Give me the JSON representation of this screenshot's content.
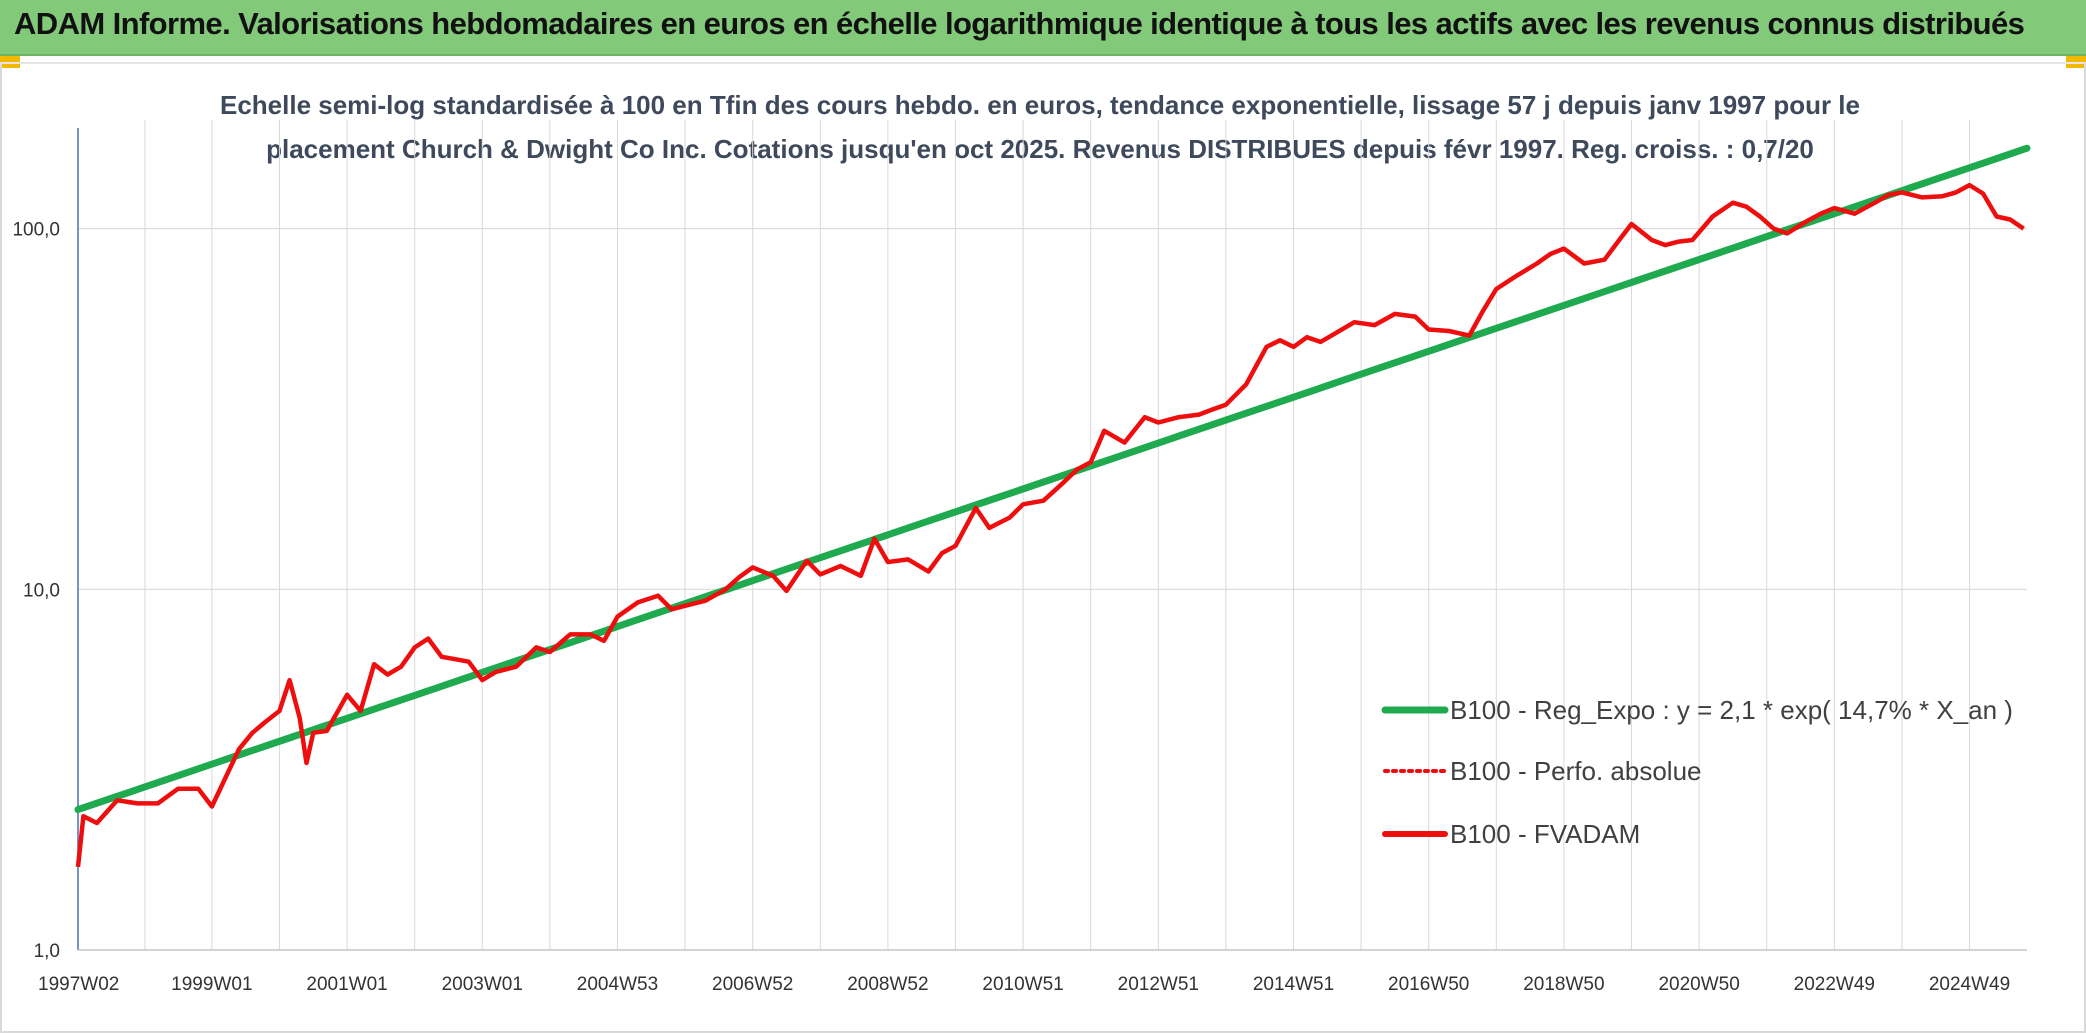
{
  "banner": {
    "title": "ADAM Informe. Valorisations hebdomadaires en euros en échelle logarithmique identique à tous les actifs avec les revenus connus distribués"
  },
  "colors": {
    "banner_bg": "#83c97a",
    "corner_accent": "#f5b800",
    "regression": "#1faa4f",
    "fvadam": "#ee0e0e",
    "perfo": "#ee0e0e",
    "grid": "#d9d9d9"
  },
  "chart_data": {
    "type": "line",
    "title_lines": [
      "Echelle semi-log standardisée à 100 en Tfin des cours hebdo. en euros, tendance exponentielle, lissage 57 j depuis janv 1997 pour le",
      "placement Church & Dwight Co Inc. Cotations jusqu'en oct 2025. Revenus DISTRIBUES depuis févr 1997. Reg. croiss. : 0,7/20"
    ],
    "y_scale": "log",
    "ylim": [
      1,
      200
    ],
    "xlim": [
      1997.02,
      2025.85
    ],
    "y_ticks": [
      {
        "value": 1,
        "label": "1,0"
      },
      {
        "value": 10,
        "label": "10,0"
      },
      {
        "value": 100,
        "label": "100,0"
      }
    ],
    "x_ticks": [
      {
        "value": 1997.02,
        "label": "1997W02"
      },
      {
        "value": 1999.0,
        "label": "1999W01"
      },
      {
        "value": 2001.0,
        "label": "2001W01"
      },
      {
        "value": 2003.0,
        "label": "2003W01"
      },
      {
        "value": 2005.0,
        "label": "2004W53"
      },
      {
        "value": 2007.0,
        "label": "2006W52"
      },
      {
        "value": 2009.0,
        "label": "2008W52"
      },
      {
        "value": 2011.0,
        "label": "2010W51"
      },
      {
        "value": 2013.0,
        "label": "2012W51"
      },
      {
        "value": 2015.0,
        "label": "2014W51"
      },
      {
        "value": 2017.0,
        "label": "2016W50"
      },
      {
        "value": 2019.0,
        "label": "2018W50"
      },
      {
        "value": 2021.0,
        "label": "2020W50"
      },
      {
        "value": 2023.0,
        "label": "2022W49"
      },
      {
        "value": 2025.0,
        "label": "2024W49"
      }
    ],
    "grid": true,
    "legend_position": "lower-right",
    "series": [
      {
        "name": "B100 - Reg_Expo : y = 2,1 * exp( 14,7% *  X_an )",
        "style": "solid-thick",
        "color": "#1faa4f",
        "x": [
          1997.02,
          2025.85
        ],
        "y": [
          2.45,
          167
        ]
      },
      {
        "name": "B100 - Perfo. absolue",
        "style": "dotted",
        "color": "#ee0e0e",
        "x": [],
        "y": []
      },
      {
        "name": "B100 - FVADAM",
        "style": "solid",
        "color": "#ee0e0e",
        "x": [
          1997.02,
          1997.1,
          1997.3,
          1997.6,
          1997.9,
          1998.2,
          1998.5,
          1998.8,
          1999.0,
          1999.2,
          1999.4,
          1999.6,
          1999.8,
          2000.0,
          2000.15,
          2000.3,
          2000.4,
          2000.5,
          2000.7,
          2001.0,
          2001.2,
          2001.4,
          2001.6,
          2001.8,
          2002.0,
          2002.2,
          2002.4,
          2002.6,
          2002.8,
          2003.0,
          2003.2,
          2003.5,
          2003.8,
          2004.0,
          2004.3,
          2004.6,
          2004.8,
          2005.0,
          2005.3,
          2005.6,
          2005.8,
          2006.0,
          2006.3,
          2006.6,
          2006.8,
          2007.0,
          2007.3,
          2007.5,
          2007.8,
          2008.0,
          2008.3,
          2008.6,
          2008.8,
          2009.0,
          2009.3,
          2009.6,
          2009.8,
          2010.0,
          2010.3,
          2010.5,
          2010.8,
          2011.0,
          2011.3,
          2011.6,
          2011.8,
          2012.0,
          2012.2,
          2012.5,
          2012.8,
          2013.0,
          2013.3,
          2013.6,
          2013.8,
          2014.0,
          2014.3,
          2014.6,
          2014.8,
          2015.0,
          2015.2,
          2015.4,
          2015.6,
          2015.9,
          2016.2,
          2016.5,
          2016.8,
          2017.0,
          2017.3,
          2017.6,
          2017.8,
          2018.0,
          2018.3,
          2018.6,
          2018.8,
          2019.0,
          2019.3,
          2019.6,
          2019.8,
          2020.0,
          2020.3,
          2020.5,
          2020.7,
          2020.9,
          2021.2,
          2021.5,
          2021.7,
          2021.9,
          2022.1,
          2022.3,
          2022.6,
          2022.8,
          2023.0,
          2023.3,
          2023.6,
          2023.8,
          2024.0,
          2024.3,
          2024.6,
          2024.8,
          2025.0,
          2025.2,
          2025.4,
          2025.6,
          2025.8
        ],
        "y": [
          1.7,
          2.35,
          2.25,
          2.6,
          2.55,
          2.55,
          2.8,
          2.8,
          2.5,
          3.0,
          3.6,
          4.0,
          4.3,
          4.6,
          5.6,
          4.4,
          3.3,
          4.0,
          4.05,
          5.1,
          4.6,
          6.2,
          5.8,
          6.1,
          6.9,
          7.3,
          6.5,
          6.4,
          6.3,
          5.6,
          5.9,
          6.1,
          6.9,
          6.7,
          7.5,
          7.5,
          7.2,
          8.4,
          9.2,
          9.6,
          8.8,
          9.0,
          9.3,
          10.0,
          10.8,
          11.5,
          10.9,
          9.9,
          12.0,
          11.0,
          11.6,
          10.9,
          13.8,
          11.9,
          12.1,
          11.2,
          12.6,
          13.2,
          16.8,
          14.8,
          15.8,
          17.2,
          17.6,
          19.8,
          21.5,
          22.5,
          27.5,
          25.5,
          30.0,
          29.0,
          30.0,
          30.5,
          31.5,
          32.5,
          37.0,
          47.0,
          49.0,
          47.0,
          50.0,
          48.5,
          51.0,
          55.0,
          54.0,
          58.0,
          57.0,
          52.5,
          52.0,
          50.5,
          59.0,
          68.0,
          74.0,
          80.0,
          85.0,
          88.0,
          80.0,
          82.0,
          92.0,
          103.0,
          93.0,
          90.0,
          92.0,
          93.0,
          108.0,
          118.0,
          115.0,
          108.0,
          100.0,
          97.0,
          105.0,
          110.0,
          114.0,
          110.0,
          118.0,
          124.0,
          126.0,
          122.0,
          123.0,
          126.0,
          132.0,
          125.0,
          108.0,
          106.0,
          100.0
        ]
      }
    ]
  }
}
